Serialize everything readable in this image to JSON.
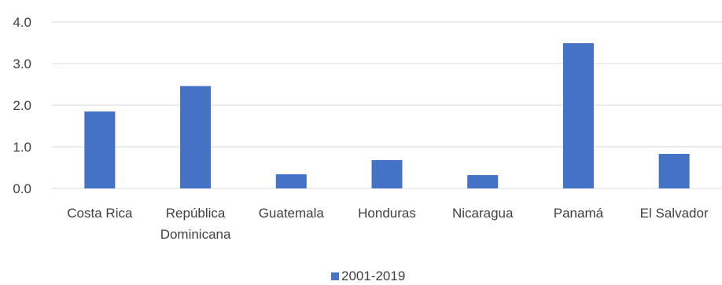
{
  "chart_data": {
    "type": "bar",
    "categories": [
      [
        "Costa Rica"
      ],
      [
        "República",
        "Dominicana"
      ],
      [
        "Guatemala"
      ],
      [
        "Honduras"
      ],
      [
        "Nicaragua"
      ],
      [
        "Panamá"
      ],
      [
        "El Salvador"
      ]
    ],
    "series": [
      {
        "name": "2001-2019",
        "values": [
          1.85,
          2.46,
          0.34,
          0.68,
          0.32,
          3.49,
          0.83
        ],
        "color": "#4472C4"
      }
    ],
    "ylim": [
      0,
      4
    ],
    "yticks": [
      "0.0",
      "1.0",
      "2.0",
      "3.0",
      "4.0"
    ],
    "grid": true,
    "legend_position": "bottom"
  }
}
